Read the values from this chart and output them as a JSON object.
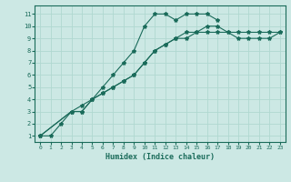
{
  "xlabel": "Humidex (Indice chaleur)",
  "bg_color": "#cce8e4",
  "grid_color": "#b0d8d0",
  "line_color": "#1a6b5a",
  "xlim": [
    -0.5,
    23.5
  ],
  "ylim": [
    0.5,
    11.7
  ],
  "xticks": [
    0,
    1,
    2,
    3,
    4,
    5,
    6,
    7,
    8,
    9,
    10,
    11,
    12,
    13,
    14,
    15,
    16,
    17,
    18,
    19,
    20,
    21,
    22,
    23
  ],
  "yticks": [
    1,
    2,
    3,
    4,
    5,
    6,
    7,
    8,
    9,
    10,
    11
  ],
  "line1_x": [
    0,
    1,
    2,
    3,
    4,
    5,
    6,
    7,
    8,
    9,
    10,
    11,
    12,
    13,
    14,
    15,
    16,
    17
  ],
  "line1_y": [
    1,
    1,
    2,
    3,
    3,
    4,
    5,
    6,
    7,
    8,
    10,
    11,
    11,
    10.5,
    11,
    11,
    11,
    10.5
  ],
  "line2_x": [
    0,
    3,
    4,
    5,
    6,
    7,
    8,
    9,
    10,
    11,
    12,
    13,
    14,
    15,
    16,
    17,
    18,
    19,
    20,
    21,
    22,
    23
  ],
  "line2_y": [
    1,
    3,
    3,
    4,
    4.5,
    5,
    5.5,
    6,
    7,
    8,
    8.5,
    9,
    9,
    9.5,
    10,
    10,
    9.5,
    9,
    9,
    9,
    9,
    9.5
  ],
  "line3_x": [
    0,
    3,
    4,
    5,
    6,
    7,
    8,
    9,
    10,
    11,
    12,
    13,
    14,
    15,
    16,
    17,
    18,
    19,
    20,
    21,
    22,
    23
  ],
  "line3_y": [
    1,
    3,
    3.5,
    4,
    4.5,
    5,
    5.5,
    6,
    7,
    8,
    8.5,
    9,
    9.5,
    9.5,
    9.5,
    9.5,
    9.5,
    9.5,
    9.5,
    9.5,
    9.5,
    9.5
  ]
}
